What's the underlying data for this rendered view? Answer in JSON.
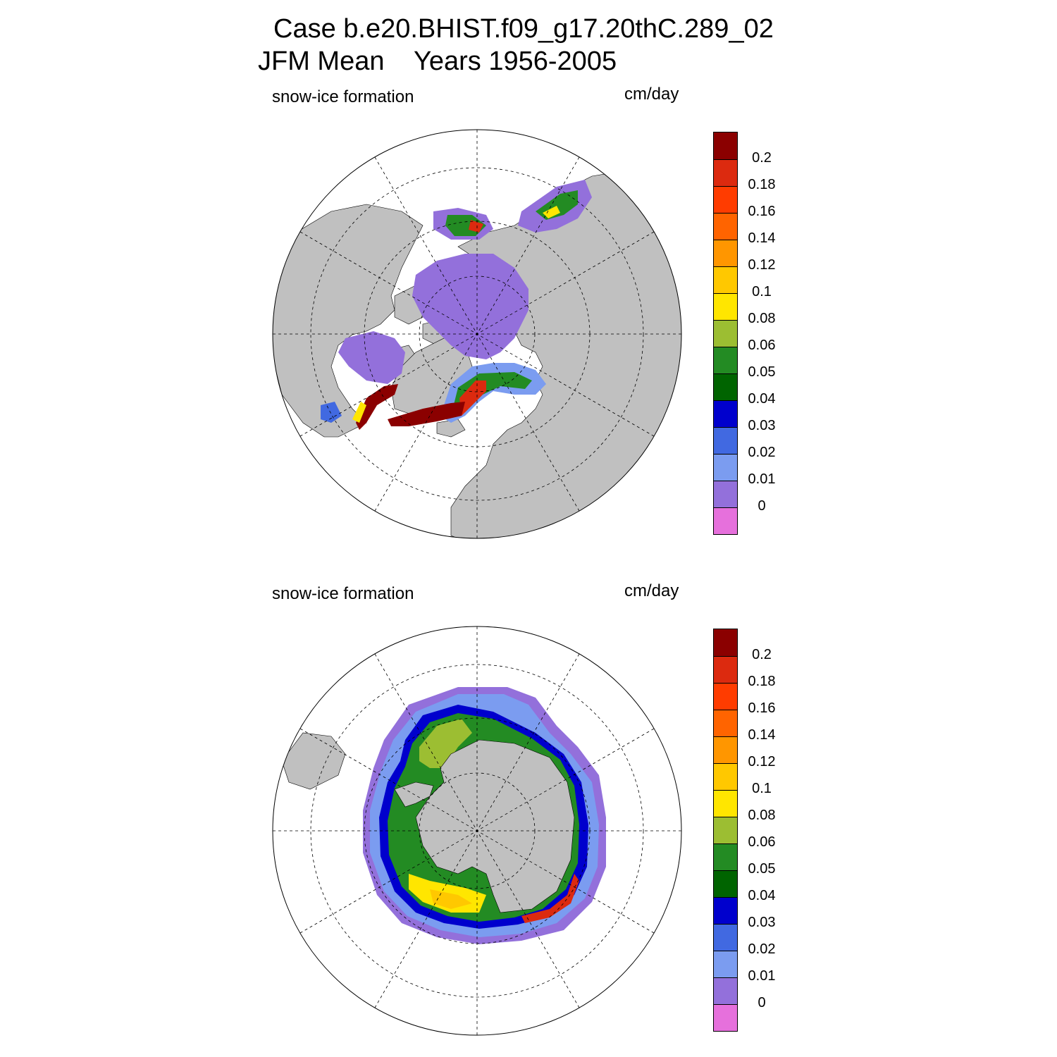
{
  "title": {
    "line1": "Case b.e20.BHIST.f09_g17.20thC.289_02",
    "line2": "JFM Mean    Years 1956-2005"
  },
  "panels": [
    {
      "id": "north",
      "left_label": "snow-ice formation",
      "right_label": "cm/day"
    },
    {
      "id": "south",
      "left_label": "snow-ice formation",
      "right_label": "cm/day"
    }
  ],
  "colorbar": {
    "unit": "cm/day",
    "tick_labels": [
      "0.2",
      "0.18",
      "0.16",
      "0.14",
      "0.12",
      "0.1",
      "0.08",
      "0.06",
      "0.05",
      "0.04",
      "0.03",
      "0.02",
      "0.01",
      "0"
    ],
    "colors": [
      "#8b0000",
      "#dc2a0f",
      "#ff3c00",
      "#ff6400",
      "#ff9600",
      "#ffc800",
      "#ffe600",
      "#9cbe32",
      "#238b23",
      "#006400",
      "#0000cd",
      "#4169e1",
      "#7b9cf0",
      "#9370db",
      "#e670dc"
    ]
  },
  "colors": {
    "land": "#c0c0c0",
    "ocean": "#ffffff",
    "grid": "#000000"
  }
}
